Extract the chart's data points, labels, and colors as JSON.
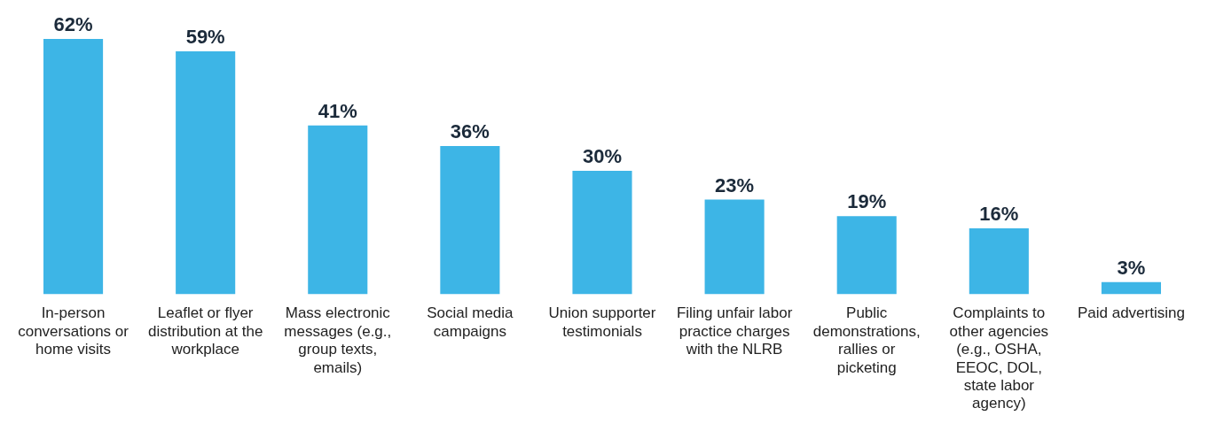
{
  "chart_data": {
    "type": "bar",
    "categories": [
      "In-person conversations or home visits",
      "Leaflet or flyer distribution at the workplace",
      "Mass electronic messages (e.g., group texts, emails)",
      "Social media campaigns",
      "Union supporter testimonials",
      "Filing unfair labor practice charges with the NLRB",
      "Public demonstrations, rallies or picketing",
      "Complaints to other agencies (e.g., OSHA, EEOC, DOL, state labor agency)",
      "Paid advertising"
    ],
    "values": [
      62,
      59,
      41,
      36,
      30,
      23,
      19,
      16,
      3
    ],
    "value_labels": [
      "62%",
      "59%",
      "41%",
      "36%",
      "30%",
      "23%",
      "19%",
      "16%",
      "3%"
    ],
    "color": "#3db5e6",
    "grid": false,
    "legend": false
  }
}
